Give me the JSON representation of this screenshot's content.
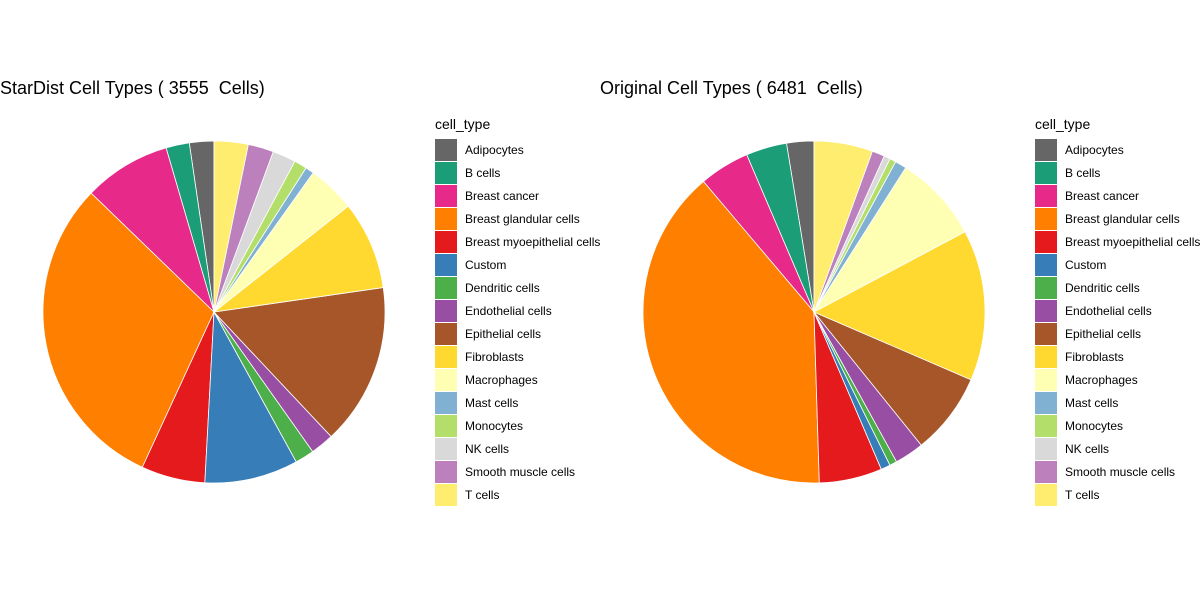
{
  "chart_data": [
    {
      "type": "pie",
      "title": "StarDist Cell Types ( 3555  Cells)",
      "legend_title": "cell_type",
      "legend_position": "right",
      "categories": [
        "Adipocytes",
        "B cells",
        "Breast cancer",
        "Breast glandular cells",
        "Breast myoepithelial cells",
        "Custom",
        "Dendritic cells",
        "Endothelial cells",
        "Epithelial cells",
        "Fibroblasts",
        "Macrophages",
        "Mast cells",
        "Monocytes",
        "NK cells",
        "Smooth muscle cells",
        "T cells"
      ],
      "colors": [
        "#666666",
        "#1b9e77",
        "#e7298a",
        "#ff7f00",
        "#e41a1c",
        "#377eb8",
        "#4daf4a",
        "#984ea3",
        "#a65628",
        "#ffd92f",
        "#ffffb3",
        "#80b1d3",
        "#b3de69",
        "#d9d9d9",
        "#bc80bd",
        "#ffed6f"
      ],
      "values": [
        2.3,
        2.2,
        8.2,
        30.2,
        6.0,
        8.8,
        1.8,
        2.2,
        15.2,
        8.3,
        4.5,
        0.8,
        1.2,
        2.2,
        2.4,
        3.2
      ],
      "unit": "percent"
    },
    {
      "type": "pie",
      "title": "Original Cell Types ( 6481  Cells)",
      "legend_title": "cell_type",
      "legend_position": "right",
      "categories": [
        "Adipocytes",
        "B cells",
        "Breast cancer",
        "Breast glandular cells",
        "Breast myoepithelial cells",
        "Custom",
        "Dendritic cells",
        "Endothelial cells",
        "Epithelial cells",
        "Fibroblasts",
        "Macrophages",
        "Mast cells",
        "Monocytes",
        "NK cells",
        "Smooth muscle cells",
        "T cells"
      ],
      "colors": [
        "#666666",
        "#1b9e77",
        "#e7298a",
        "#ff7f00",
        "#e41a1c",
        "#377eb8",
        "#4daf4a",
        "#984ea3",
        "#a65628",
        "#ffd92f",
        "#ffffb3",
        "#80b1d3",
        "#b3de69",
        "#d9d9d9",
        "#bc80bd",
        "#ffed6f"
      ],
      "values": [
        2.6,
        3.9,
        4.8,
        39.7,
        6.0,
        0.9,
        0.7,
        2.8,
        7.8,
        14.4,
        8.3,
        1.1,
        0.6,
        0.6,
        1.2,
        5.6
      ],
      "unit": "percent"
    }
  ]
}
